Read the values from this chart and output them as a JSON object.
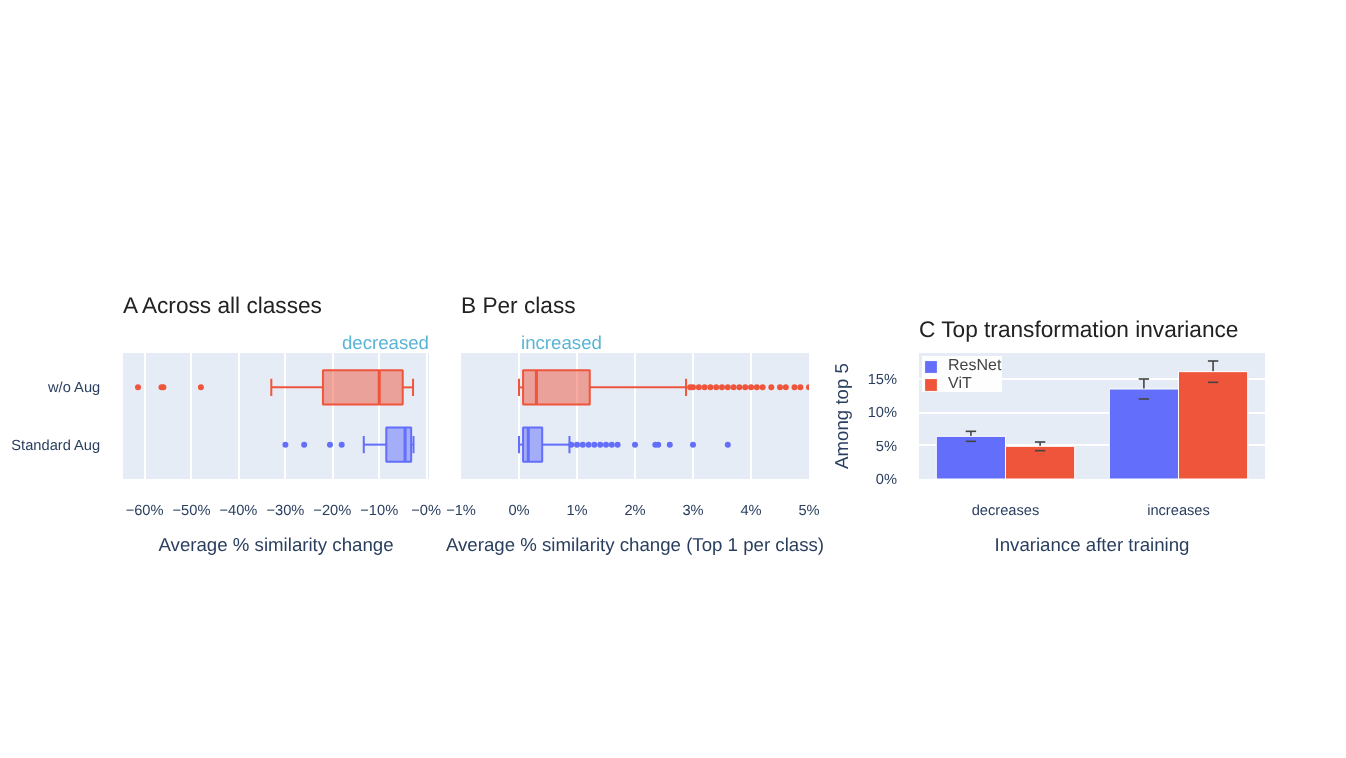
{
  "chart_data": [
    {
      "type": "box",
      "orientation": "horizontal",
      "title": "A   Across all classes",
      "xlabel": "Average % similarity change",
      "annotations": [
        "decreased"
      ],
      "categories": [
        "w/o Aug",
        "Standard Aug"
      ],
      "colors": [
        "#ef553b",
        "#636efa"
      ],
      "boxes": [
        {
          "low": -33,
          "q1": -22,
          "median": -10,
          "q3": -5,
          "high": -2.8,
          "outliers": [
            -61.4,
            -56.4,
            -56,
            -48
          ]
        },
        {
          "low": -13.3,
          "q1": -8.5,
          "median": -4.5,
          "q3": -3.2,
          "high": -2.7,
          "outliers": [
            -30,
            -26,
            -20.5,
            -18
          ]
        }
      ],
      "xlim": [
        -64.6,
        0.6
      ],
      "xticks": [
        {
          "value": -60,
          "label": "−60%"
        },
        {
          "value": -50,
          "label": "−50%"
        },
        {
          "value": -40,
          "label": "−40%"
        },
        {
          "value": -30,
          "label": "−30%"
        },
        {
          "value": -20,
          "label": "−20%"
        },
        {
          "value": -10,
          "label": "−10%"
        },
        {
          "value": 0,
          "label": "−0%"
        }
      ],
      "grid": "x"
    },
    {
      "type": "box",
      "orientation": "horizontal",
      "title": "B   Per class",
      "xlabel": "Average % similarity change (Top 1 per class)",
      "annotations": [
        "increased"
      ],
      "categories": [
        null,
        null
      ],
      "colors": [
        "#ef553b",
        "#636efa"
      ],
      "tick_labels": "x",
      "boxes": [
        {
          "low": 0,
          "q1": 0.07,
          "median": 0.3,
          "q3": 1.22,
          "high": 2.88,
          "outliers": [
            2.95,
            3.0,
            3.1,
            3.2,
            3.3,
            3.4,
            3.5,
            3.6,
            3.7,
            3.8,
            3.9,
            4.0,
            4.1,
            4.2,
            4.35,
            4.5,
            4.6,
            4.75,
            4.85,
            5.0
          ]
        },
        {
          "low": 0,
          "q1": 0.07,
          "median": 0.16,
          "q3": 0.4,
          "high": 0.87,
          "outliers": [
            0.9,
            1.0,
            1.1,
            1.2,
            1.3,
            1.4,
            1.5,
            1.6,
            1.7,
            2.0,
            2.35,
            2.4,
            2.6,
            3.0,
            3.6
          ]
        }
      ],
      "xlim": [
        -1,
        5
      ],
      "xticks": [
        {
          "value": -1,
          "label": "−1%"
        },
        {
          "value": 0,
          "label": "0%"
        },
        {
          "value": 1,
          "label": "1%"
        },
        {
          "value": 2,
          "label": "2%"
        },
        {
          "value": 3,
          "label": "3%"
        },
        {
          "value": 4,
          "label": "4%"
        },
        {
          "value": 5,
          "label": "5%"
        }
      ],
      "grid": "x"
    },
    {
      "type": "bar",
      "title": "C   Top transformation invariance",
      "xlabel": "Invariance after training",
      "ylabel": "Among top 5",
      "categories": [
        "decreases",
        "increases"
      ],
      "series": [
        {
          "name": "ResNet",
          "color": "#636efa",
          "values": [
            6.4,
            13.5
          ],
          "errors": [
            0.75,
            1.5
          ]
        },
        {
          "name": "ViT",
          "color": "#ef553b",
          "values": [
            4.9,
            16.1
          ],
          "errors": [
            0.65,
            1.6
          ]
        }
      ],
      "ylim": [
        0,
        18.9
      ],
      "yticks": [
        {
          "value": 0,
          "label": "0%"
        },
        {
          "value": 5,
          "label": "5%"
        },
        {
          "value": 10,
          "label": "10%"
        },
        {
          "value": 15,
          "label": "15%"
        }
      ],
      "grid": "y",
      "legend": "top left"
    }
  ]
}
